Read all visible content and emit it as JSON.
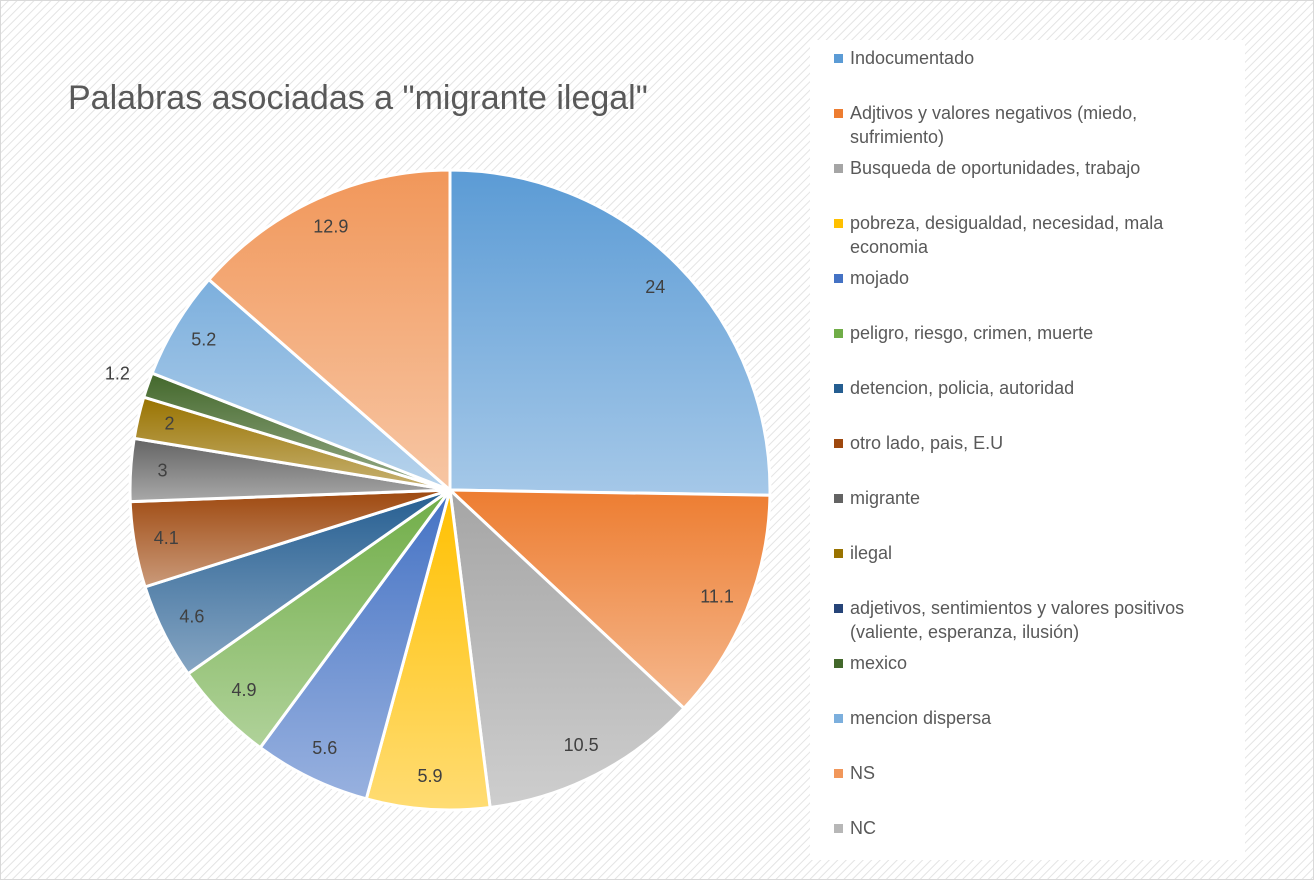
{
  "chart_data": {
    "type": "pie",
    "title": "Palabras asociadas a \"migrante ilegal\"",
    "categories": [
      "Indocumentado",
      "Adjtivos y valores negativos (miedo, sufrimiento)",
      "Busqueda de oportunidades, trabajo",
      "pobreza, desigualdad, necesidad, mala economia",
      "mojado",
      "peligro, riesgo, crimen, muerte",
      "detencion, policia, autoridad",
      "otro lado, pais, E.U",
      "migrante",
      "ilegal",
      "adjetivos, sentimientos y valores positivos (valiente, esperanza, ilusión)",
      "mexico",
      "mencion dispersa",
      "NS",
      "NC"
    ],
    "values": [
      24,
      11.1,
      10.5,
      5.9,
      5.6,
      4.9,
      4.6,
      4.1,
      3,
      2,
      null,
      1.2,
      5.2,
      12.9,
      null
    ],
    "colors": [
      "#5B9BD5",
      "#ED7D31",
      "#A5A5A5",
      "#FFC000",
      "#4472C4",
      "#70AD47",
      "#255E91",
      "#9E480E",
      "#636363",
      "#997300",
      "#264478",
      "#43682B",
      "#7CAFDD",
      "#F1975A",
      "#B7B7B7"
    ],
    "legend": "right"
  }
}
